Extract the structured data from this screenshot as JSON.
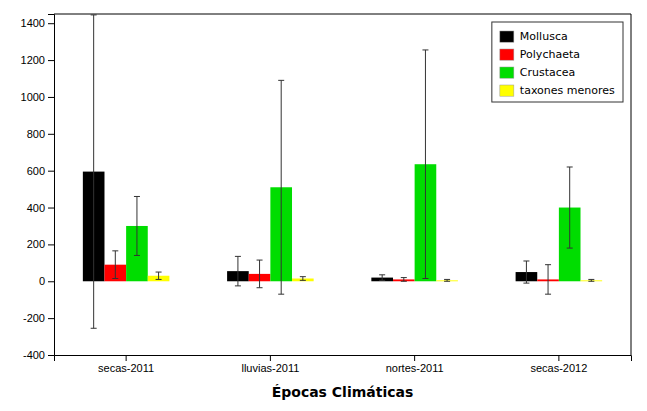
{
  "chart_data": {
    "type": "bar",
    "xlabel": "Épocas Climáticas",
    "categories": [
      "secas-2011",
      "lluvias-2011",
      "nortes-2011",
      "secas-2012"
    ],
    "series": [
      {
        "name": "Mollusca",
        "color": "#000000",
        "values": [
          595,
          55,
          20,
          50
        ],
        "errors": [
          850,
          80,
          15,
          60
        ]
      },
      {
        "name": "Polychaeta",
        "color": "#ff0000",
        "values": [
          90,
          40,
          10,
          10
        ],
        "errors": [
          75,
          75,
          10,
          80
        ]
      },
      {
        "name": "Crustacea",
        "color": "#00dd00",
        "values": [
          300,
          510,
          635,
          400
        ],
        "errors": [
          160,
          580,
          620,
          220
        ]
      },
      {
        "name": "taxones menores",
        "color": "#ffff00",
        "values": [
          30,
          15,
          5,
          5
        ],
        "errors": [
          20,
          10,
          5,
          5
        ]
      }
    ],
    "ylim": [
      -400,
      1450
    ],
    "yticks": [
      -400,
      -200,
      0,
      200,
      400,
      600,
      800,
      1000,
      1200,
      1400
    ],
    "grid": false,
    "legend": "upper right"
  }
}
